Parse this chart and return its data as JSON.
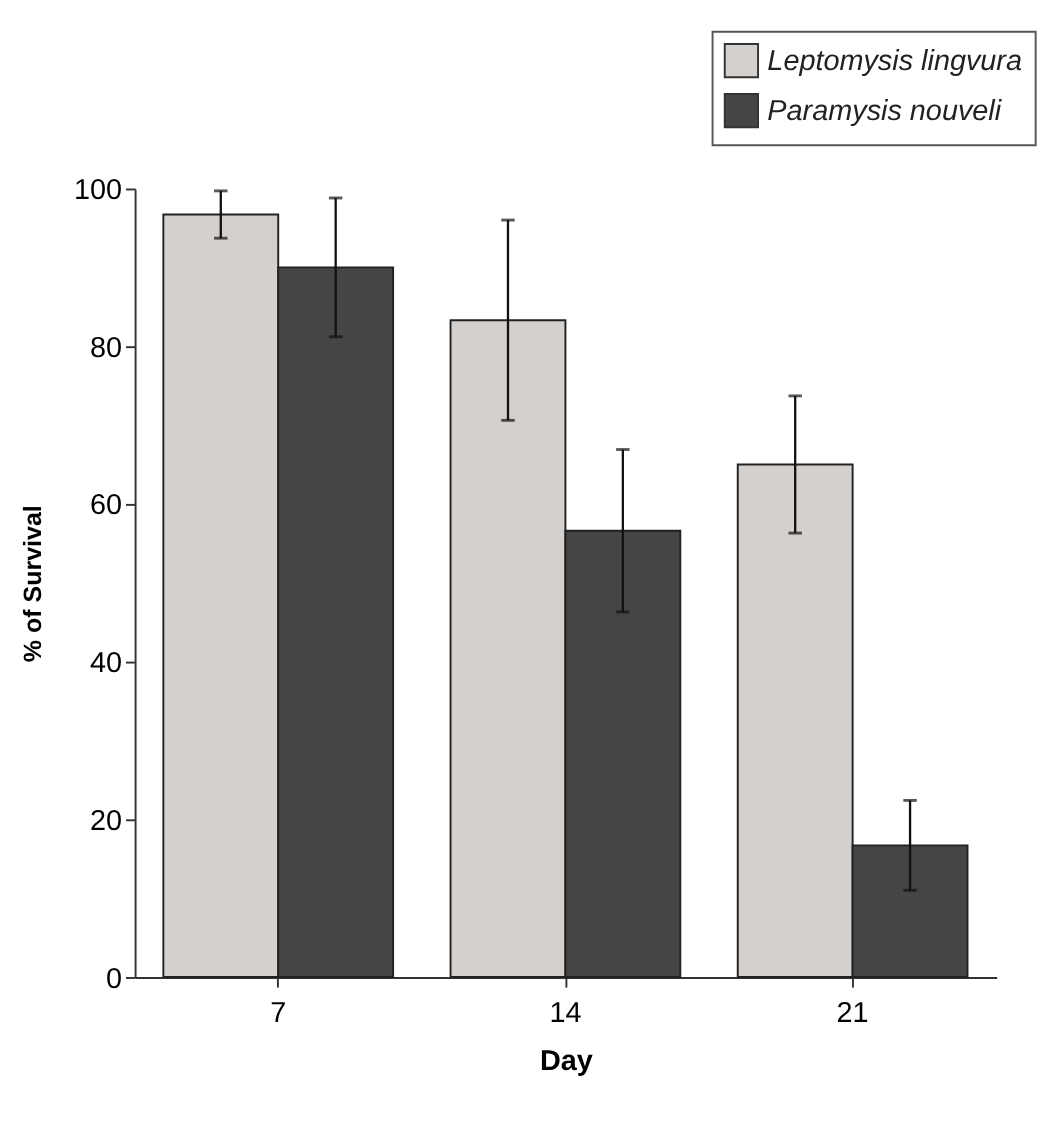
{
  "chart_data": {
    "type": "bar",
    "categories": [
      "7",
      "14",
      "21"
    ],
    "xlabel": "Day",
    "ylabel": "% of Survival",
    "series": [
      {
        "name": "Leptomysis lingvura",
        "color": "#d4d0cd",
        "values": [
          96.7,
          83.3,
          65.0
        ],
        "errors": [
          3.0,
          12.7,
          8.7
        ]
      },
      {
        "name": "Paramysis nouveli",
        "color": "#454545",
        "values": [
          90.0,
          56.6,
          16.7
        ],
        "errors": [
          8.8,
          10.3,
          5.7
        ]
      }
    ],
    "ylim": [
      0,
      100
    ],
    "yticks": [
      0,
      20,
      40,
      60,
      80,
      100
    ],
    "grid": false,
    "legend": "top right"
  }
}
